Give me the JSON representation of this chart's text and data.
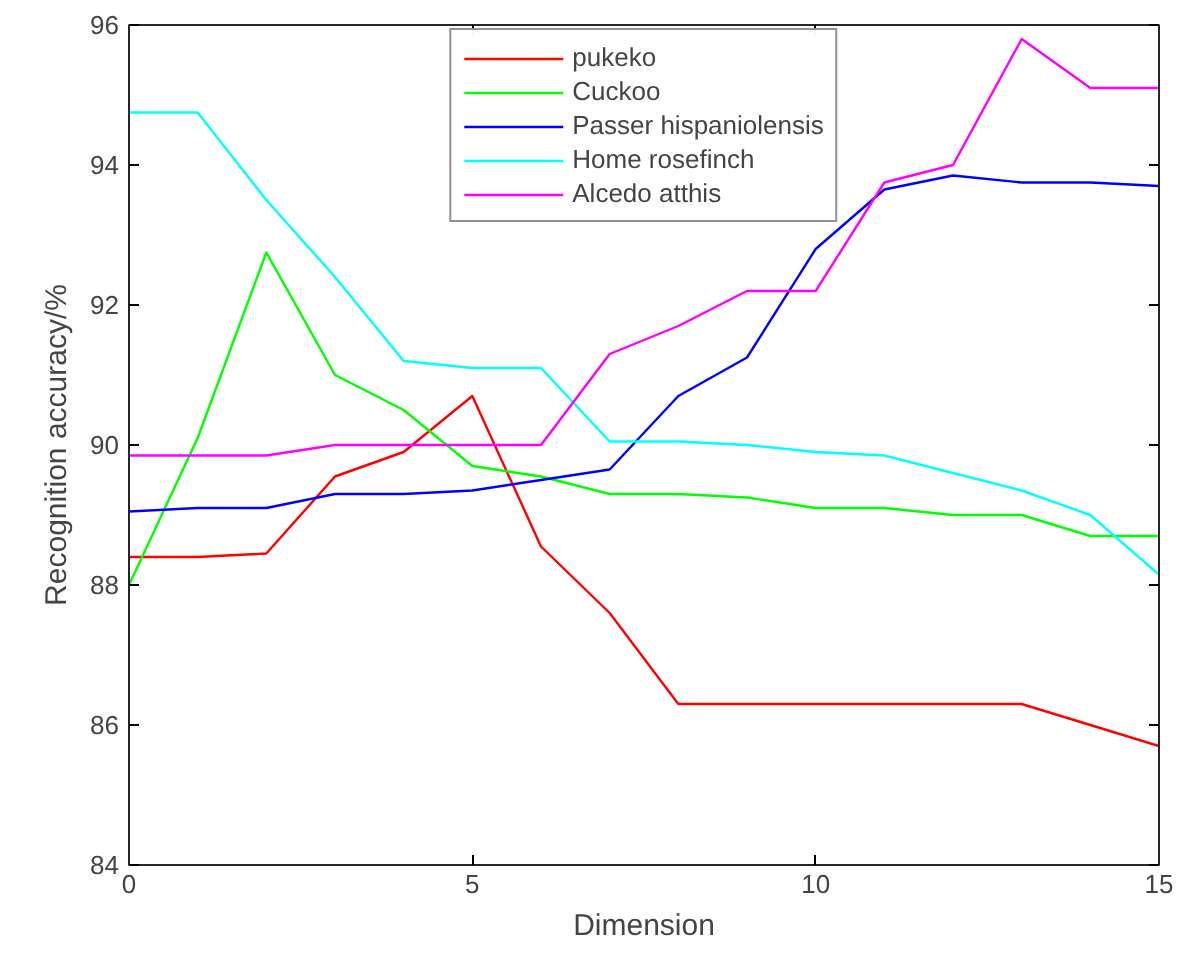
{
  "chart_data": {
    "type": "line",
    "xlabel": "Dimension",
    "ylabel": "Recognition accuracy/%",
    "x": [
      0,
      1,
      2,
      3,
      4,
      5,
      6,
      7,
      8,
      9,
      10,
      11,
      12,
      13,
      14,
      15
    ],
    "xlim": [
      0,
      15
    ],
    "xticks": [
      0,
      5,
      10,
      15
    ],
    "ylim": [
      84,
      96
    ],
    "yticks": [
      84,
      86,
      88,
      90,
      92,
      94,
      96
    ],
    "grid": false,
    "legend": "top",
    "marker": "none",
    "line_style": "solid",
    "series": [
      {
        "name": "pukeko",
        "color": "#ff0000",
        "values": [
          88.4,
          88.4,
          88.45,
          89.55,
          89.9,
          90.7,
          88.55,
          87.6,
          86.3,
          86.3,
          86.3,
          86.3,
          86.3,
          86.3,
          86.0,
          85.7
        ]
      },
      {
        "name": "Cuckoo",
        "color": "#00ff00",
        "values": [
          88.0,
          90.1,
          92.75,
          91.0,
          90.5,
          89.7,
          89.55,
          89.3,
          89.3,
          89.25,
          89.1,
          89.1,
          89.0,
          89.0,
          88.7,
          88.7
        ]
      },
      {
        "name": "Passer hispaniolensis",
        "color": "#0000ff",
        "values": [
          89.05,
          89.1,
          89.1,
          89.3,
          89.3,
          89.35,
          89.5,
          89.65,
          90.7,
          91.25,
          92.8,
          93.65,
          93.85,
          93.75,
          93.75,
          93.7
        ]
      },
      {
        "name": "Home rosefinch",
        "color": "#00ffff",
        "values": [
          94.75,
          94.75,
          93.5,
          92.4,
          91.2,
          91.1,
          91.1,
          90.05,
          90.05,
          90.0,
          89.9,
          89.85,
          89.6,
          89.35,
          89.0,
          88.15
        ]
      },
      {
        "name": "Alcedo atthis",
        "color": "#ff00ff",
        "values": [
          89.85,
          89.85,
          89.85,
          90.0,
          90.0,
          90.0,
          90.0,
          91.3,
          91.7,
          92.2,
          92.2,
          93.75,
          94.0,
          95.8,
          95.1,
          95.1
        ]
      }
    ]
  }
}
